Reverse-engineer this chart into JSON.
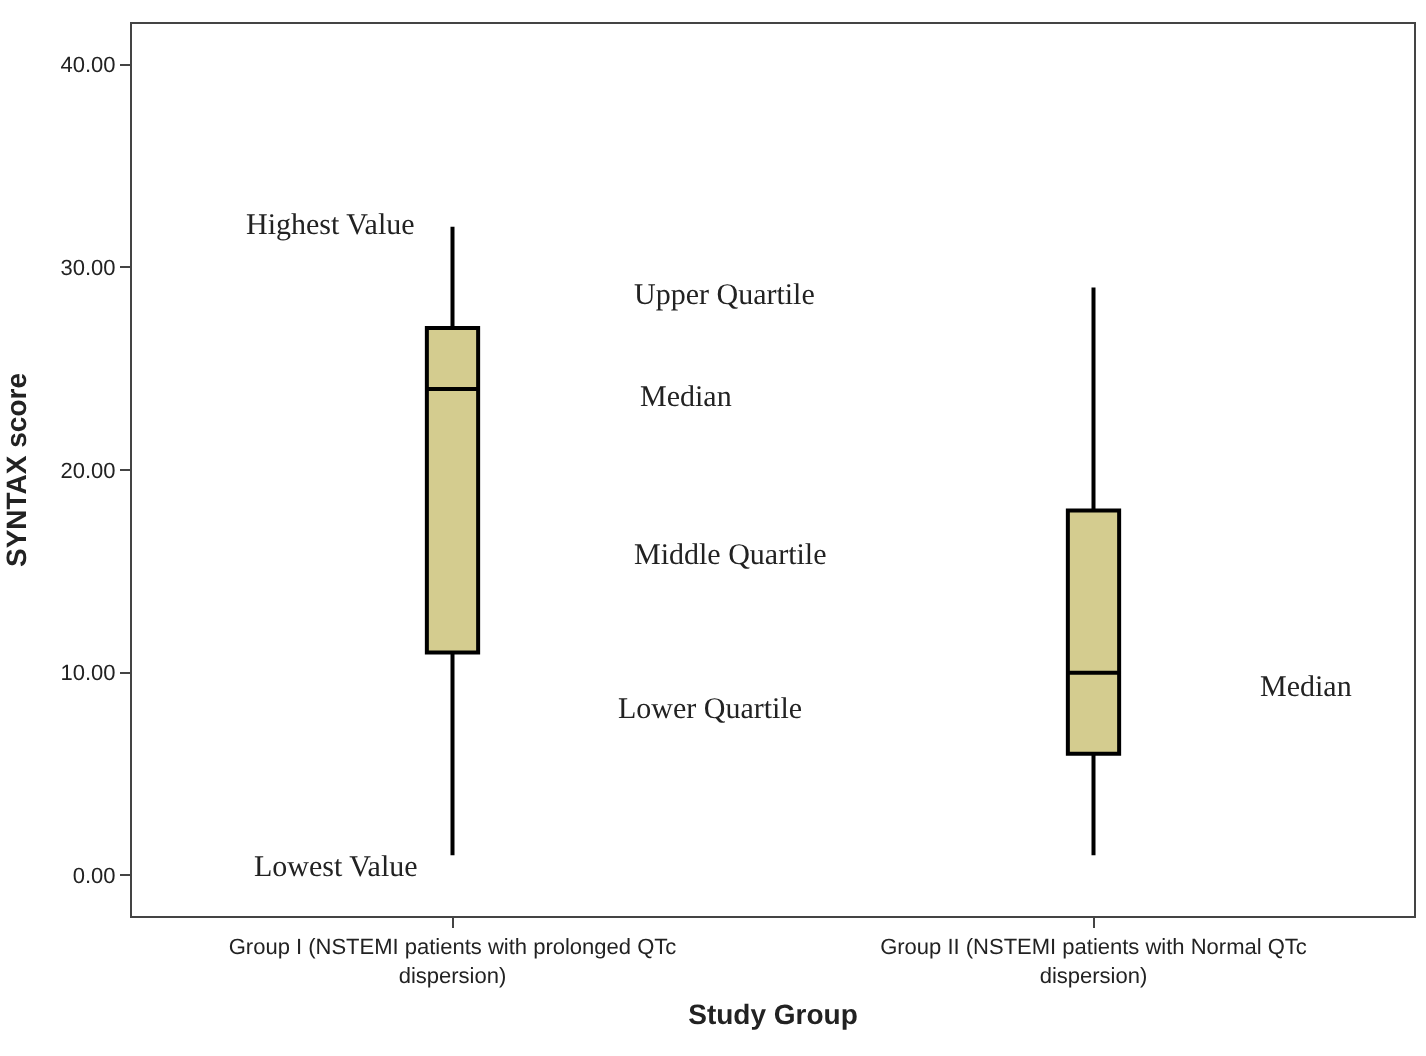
{
  "chart_data": {
    "type": "box",
    "xlabel": "Study Group",
    "ylabel": "SYNTAX score",
    "categories": [
      "Group I (NSTEMI patients with prolonged QTc dispersion)",
      "Group II (NSTEMI patients with Normal QTc dispersion)"
    ],
    "boxes": [
      {
        "low": 1,
        "q1": 11,
        "median": 24,
        "q3": 27,
        "high": 32
      },
      {
        "low": 1,
        "q1": 6,
        "median": 10,
        "q3": 18,
        "high": 29
      }
    ],
    "color": "#d4cc8f",
    "ylim": [
      -2,
      42
    ],
    "yticks": [
      {
        "value": 0,
        "label": "0.00"
      },
      {
        "value": 10,
        "label": "10.00"
      },
      {
        "value": 20,
        "label": "20.00"
      },
      {
        "value": 30,
        "label": "30.00"
      },
      {
        "value": 40,
        "label": "40.00"
      }
    ],
    "annotations": [
      "Highest Value",
      "Upper Quartile",
      "Median",
      "Middle Quartile",
      "Lower Quartile",
      "Lowest Value",
      "Median"
    ]
  }
}
